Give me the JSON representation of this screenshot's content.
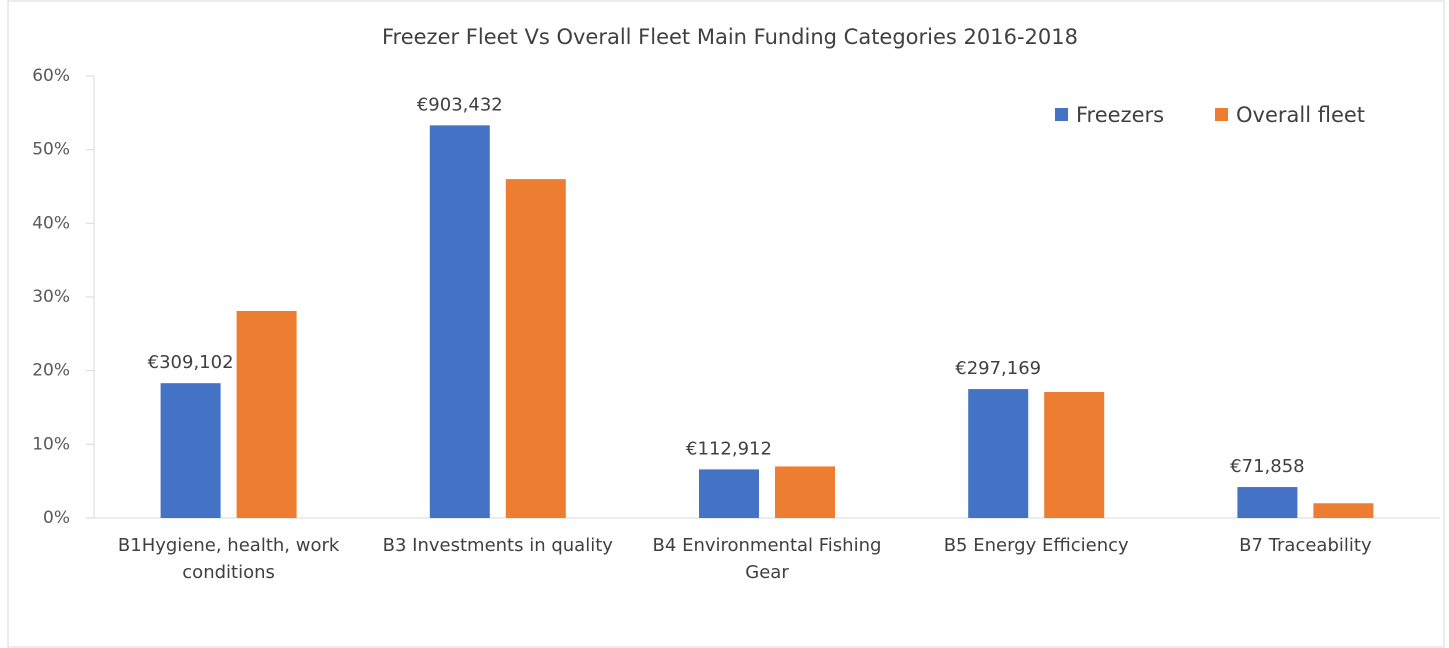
{
  "chart_data": {
    "type": "bar",
    "title": "Freezer Fleet Vs Overall Fleet Main Funding Categories 2016-2018",
    "categories": [
      "B1Hygiene, health, work conditions",
      "B3 Investments in quality",
      "B4 Environmental Fishing Gear",
      "B5 Energy Efficiency",
      "B7 Traceability"
    ],
    "series": [
      {
        "name": "Freezers",
        "color": "#4472c4",
        "values": [
          18.3,
          53.3,
          6.6,
          17.5,
          4.2
        ]
      },
      {
        "name": "Overall fleet",
        "color": "#ed7d31",
        "values": [
          28.1,
          46,
          7.0,
          17.1,
          2.0
        ]
      }
    ],
    "annotations": [
      "€309,102",
      "€903,432",
      "€112,912",
      "€297,169",
      "€71,858"
    ],
    "ylim": [
      0,
      60
    ],
    "yticks": [
      {
        "value": 0,
        "label": "0%"
      },
      {
        "value": 10,
        "label": "10%"
      },
      {
        "value": 20,
        "label": "20%"
      },
      {
        "value": 30,
        "label": "30%"
      },
      {
        "value": 40,
        "label": "40%"
      },
      {
        "value": 50,
        "label": "50%"
      },
      {
        "value": 60,
        "label": "60%"
      }
    ],
    "grid": false,
    "legend": "top-right"
  }
}
